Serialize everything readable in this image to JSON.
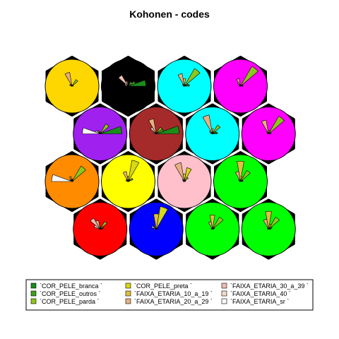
{
  "chart_data": {
    "type": "som-codes",
    "title": "Kohonen - codes",
    "grid": {
      "xdim": 4,
      "ydim": 4,
      "topology": "hexagonal"
    },
    "variables": [
      {
        "name": "`COR_PELE_branca `",
        "color": "#1a8c1a"
      },
      {
        "name": "`COR_PELE_outros `",
        "color": "#3f9f1f"
      },
      {
        "name": "`COR_PELE_parda `",
        "color": "#8ec61a"
      },
      {
        "name": "`COR_PELE_preta `",
        "color": "#d8d818"
      },
      {
        "name": "`FAIXA_ETARIA_10_a_19 `",
        "color": "#e0c040"
      },
      {
        "name": "`FAIXA_ETARIA_20_a_29 `",
        "color": "#e8b080"
      },
      {
        "name": "`FAIXA_ETARIA_30_a_39 `",
        "color": "#f0bcb0"
      },
      {
        "name": "`FAIXA_ETARIA_40 `",
        "color": "#f4dcc8"
      },
      {
        "name": "`FAIXA_ETARIA_sr `",
        "color": "#f8f8f8"
      }
    ],
    "units": [
      {
        "row": 0,
        "col": 0,
        "bg": "#ffd700",
        "codes": [
          0.05,
          0.05,
          0.3,
          0.05,
          0.05,
          0.55,
          0.1,
          0.1,
          0.05
        ]
      },
      {
        "row": 0,
        "col": 1,
        "bg": "#000000",
        "codes": [
          0.7,
          0.3,
          0.2,
          0.05,
          0.05,
          0.2,
          0.5,
          0.15,
          0.1
        ]
      },
      {
        "row": 0,
        "col": 2,
        "bg": "#00ffff",
        "codes": [
          0.2,
          0.15,
          0.8,
          0.05,
          0.3,
          0.5,
          0.1,
          0.05,
          0.05
        ]
      },
      {
        "row": 0,
        "col": 3,
        "bg": "#ff00ff",
        "codes": [
          0.1,
          0.1,
          0.9,
          0.05,
          0.05,
          0.3,
          0.15,
          0.05,
          0.05
        ]
      },
      {
        "row": 1,
        "col": 0,
        "bg": "#a020f0",
        "codes": [
          0.85,
          0.15,
          0.45,
          0.05,
          0.05,
          0.1,
          0.15,
          0.2,
          0.7
        ]
      },
      {
        "row": 1,
        "col": 1,
        "bg": "#a52a2a",
        "codes": [
          0.9,
          0.3,
          0.3,
          0.05,
          0.1,
          0.6,
          0.3,
          0.1,
          0.05
        ]
      },
      {
        "row": 1,
        "col": 2,
        "bg": "#00ffff",
        "codes": [
          0.2,
          0.15,
          0.4,
          0.1,
          0.2,
          0.75,
          0.15,
          0.1,
          0.05
        ]
      },
      {
        "row": 1,
        "col": 3,
        "bg": "#ff00ff",
        "codes": [
          0.1,
          0.1,
          0.8,
          0.05,
          0.15,
          0.55,
          0.1,
          0.05,
          0.05
        ]
      },
      {
        "row": 2,
        "col": 0,
        "bg": "#ff8c00",
        "codes": [
          0.05,
          0.05,
          0.7,
          0.1,
          0.1,
          0.2,
          0.1,
          0.1,
          0.8
        ]
      },
      {
        "row": 2,
        "col": 1,
        "bg": "#ffff00",
        "codes": [
          0.05,
          0.2,
          0.1,
          0.85,
          0.2,
          0.4,
          0.1,
          0.1,
          0.05
        ]
      },
      {
        "row": 2,
        "col": 2,
        "bg": "#ffc0cb",
        "codes": [
          0.05,
          0.05,
          0.2,
          0.55,
          0.3,
          0.75,
          0.1,
          0.05,
          0.05
        ]
      },
      {
        "row": 2,
        "col": 3,
        "bg": "#00ff00",
        "codes": [
          0.1,
          0.1,
          0.5,
          0.2,
          0.8,
          0.4,
          0.1,
          0.05,
          0.05
        ]
      },
      {
        "row": 3,
        "col": 0,
        "bg": "#ff0000",
        "codes": [
          0.1,
          0.15,
          0.35,
          0.05,
          0.1,
          0.35,
          0.5,
          0.25,
          0.05
        ]
      },
      {
        "row": 3,
        "col": 1,
        "bg": "#0000ff",
        "codes": [
          0.05,
          0.05,
          0.05,
          0.9,
          0.6,
          0.15,
          0.1,
          0.2,
          0.1
        ]
      },
      {
        "row": 3,
        "col": 2,
        "bg": "#00ff00",
        "codes": [
          0.05,
          0.1,
          0.55,
          0.1,
          0.55,
          0.3,
          0.05,
          0.05,
          0.05
        ]
      },
      {
        "row": 3,
        "col": 3,
        "bg": "#00ff00",
        "codes": [
          0.1,
          0.15,
          0.55,
          0.2,
          0.7,
          0.4,
          0.05,
          0.05,
          0.05
        ]
      }
    ],
    "cluster_boundaries": true,
    "legend": "bottom"
  }
}
